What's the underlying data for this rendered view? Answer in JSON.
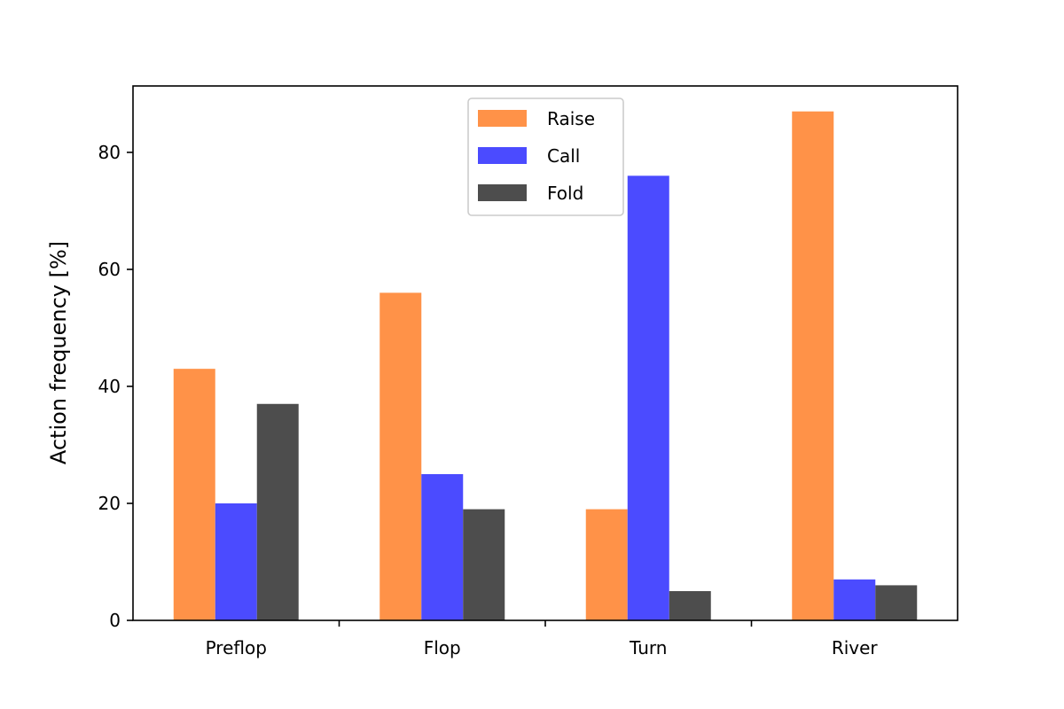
{
  "chart_data": {
    "type": "bar",
    "categories": [
      "Preflop",
      "Flop",
      "Turn",
      "River"
    ],
    "series": [
      {
        "name": "Raise",
        "values": [
          43,
          56,
          19,
          87
        ],
        "color": "#ff9248"
      },
      {
        "name": "Call",
        "values": [
          20,
          25,
          76,
          7
        ],
        "color": "#4b4bff"
      },
      {
        "name": "Fold",
        "values": [
          37,
          19,
          5,
          6
        ],
        "color": "#4d4d4d"
      }
    ],
    "title": "",
    "xlabel": "",
    "ylabel": "Action frequency [%]",
    "ylim": [
      0,
      91.35
    ],
    "yticks": [
      0,
      20,
      40,
      60,
      80
    ],
    "grid": false,
    "legend_position": "upper center"
  }
}
